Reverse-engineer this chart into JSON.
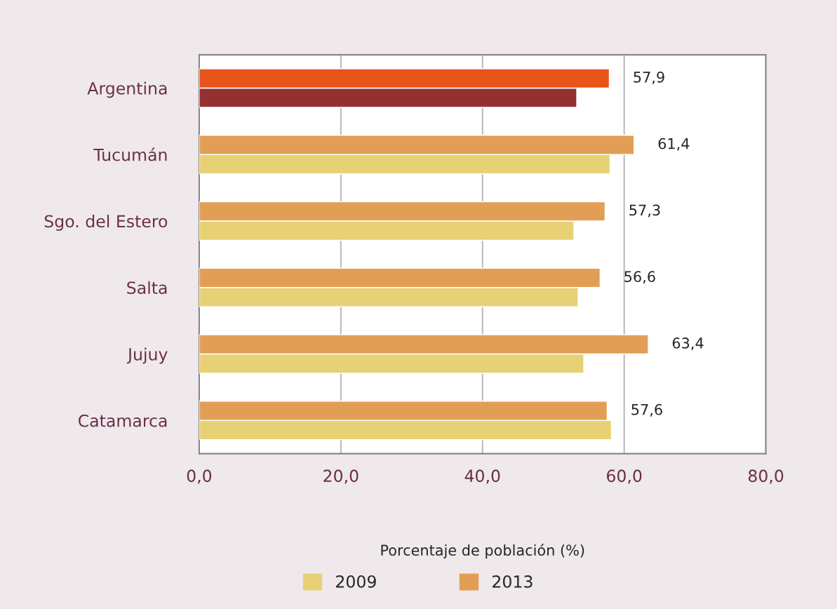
{
  "chart_data": {
    "type": "bar",
    "orientation": "horizontal",
    "categories": [
      "Argentina",
      "Tucumán",
      "Sgo. del Estero",
      "Salta",
      "Jujuy",
      "Catamarca"
    ],
    "series": [
      {
        "name": "2009",
        "color": "#e8d174",
        "colors": [
          "#943030",
          "#e8d174",
          "#e8d174",
          "#e8d174",
          "#e8d174",
          "#e8d174"
        ],
        "values": [
          53.3,
          58.0,
          52.9,
          53.5,
          54.3,
          58.2
        ]
      },
      {
        "name": "2013",
        "color": "#e39e55",
        "colors": [
          "#e8541a",
          "#e39e55",
          "#e39e55",
          "#e39e55",
          "#e39e55",
          "#e39e55"
        ],
        "values": [
          57.9,
          61.4,
          57.3,
          56.6,
          63.4,
          57.6
        ],
        "value_labels": [
          "57,9",
          "61,4",
          "57,3",
          "56,6",
          "63,4",
          "57,6"
        ]
      }
    ],
    "xlim": [
      0,
      80
    ],
    "xticks": [
      {
        "value": 0,
        "label": "0,0"
      },
      {
        "value": 20,
        "label": "20,0"
      },
      {
        "value": 40,
        "label": "40,0"
      },
      {
        "value": 60,
        "label": "60,0"
      },
      {
        "value": 80,
        "label": "80,0"
      }
    ],
    "xlabel": "Porcentaje de población (%)",
    "grid": "x",
    "legend": "bottom"
  }
}
